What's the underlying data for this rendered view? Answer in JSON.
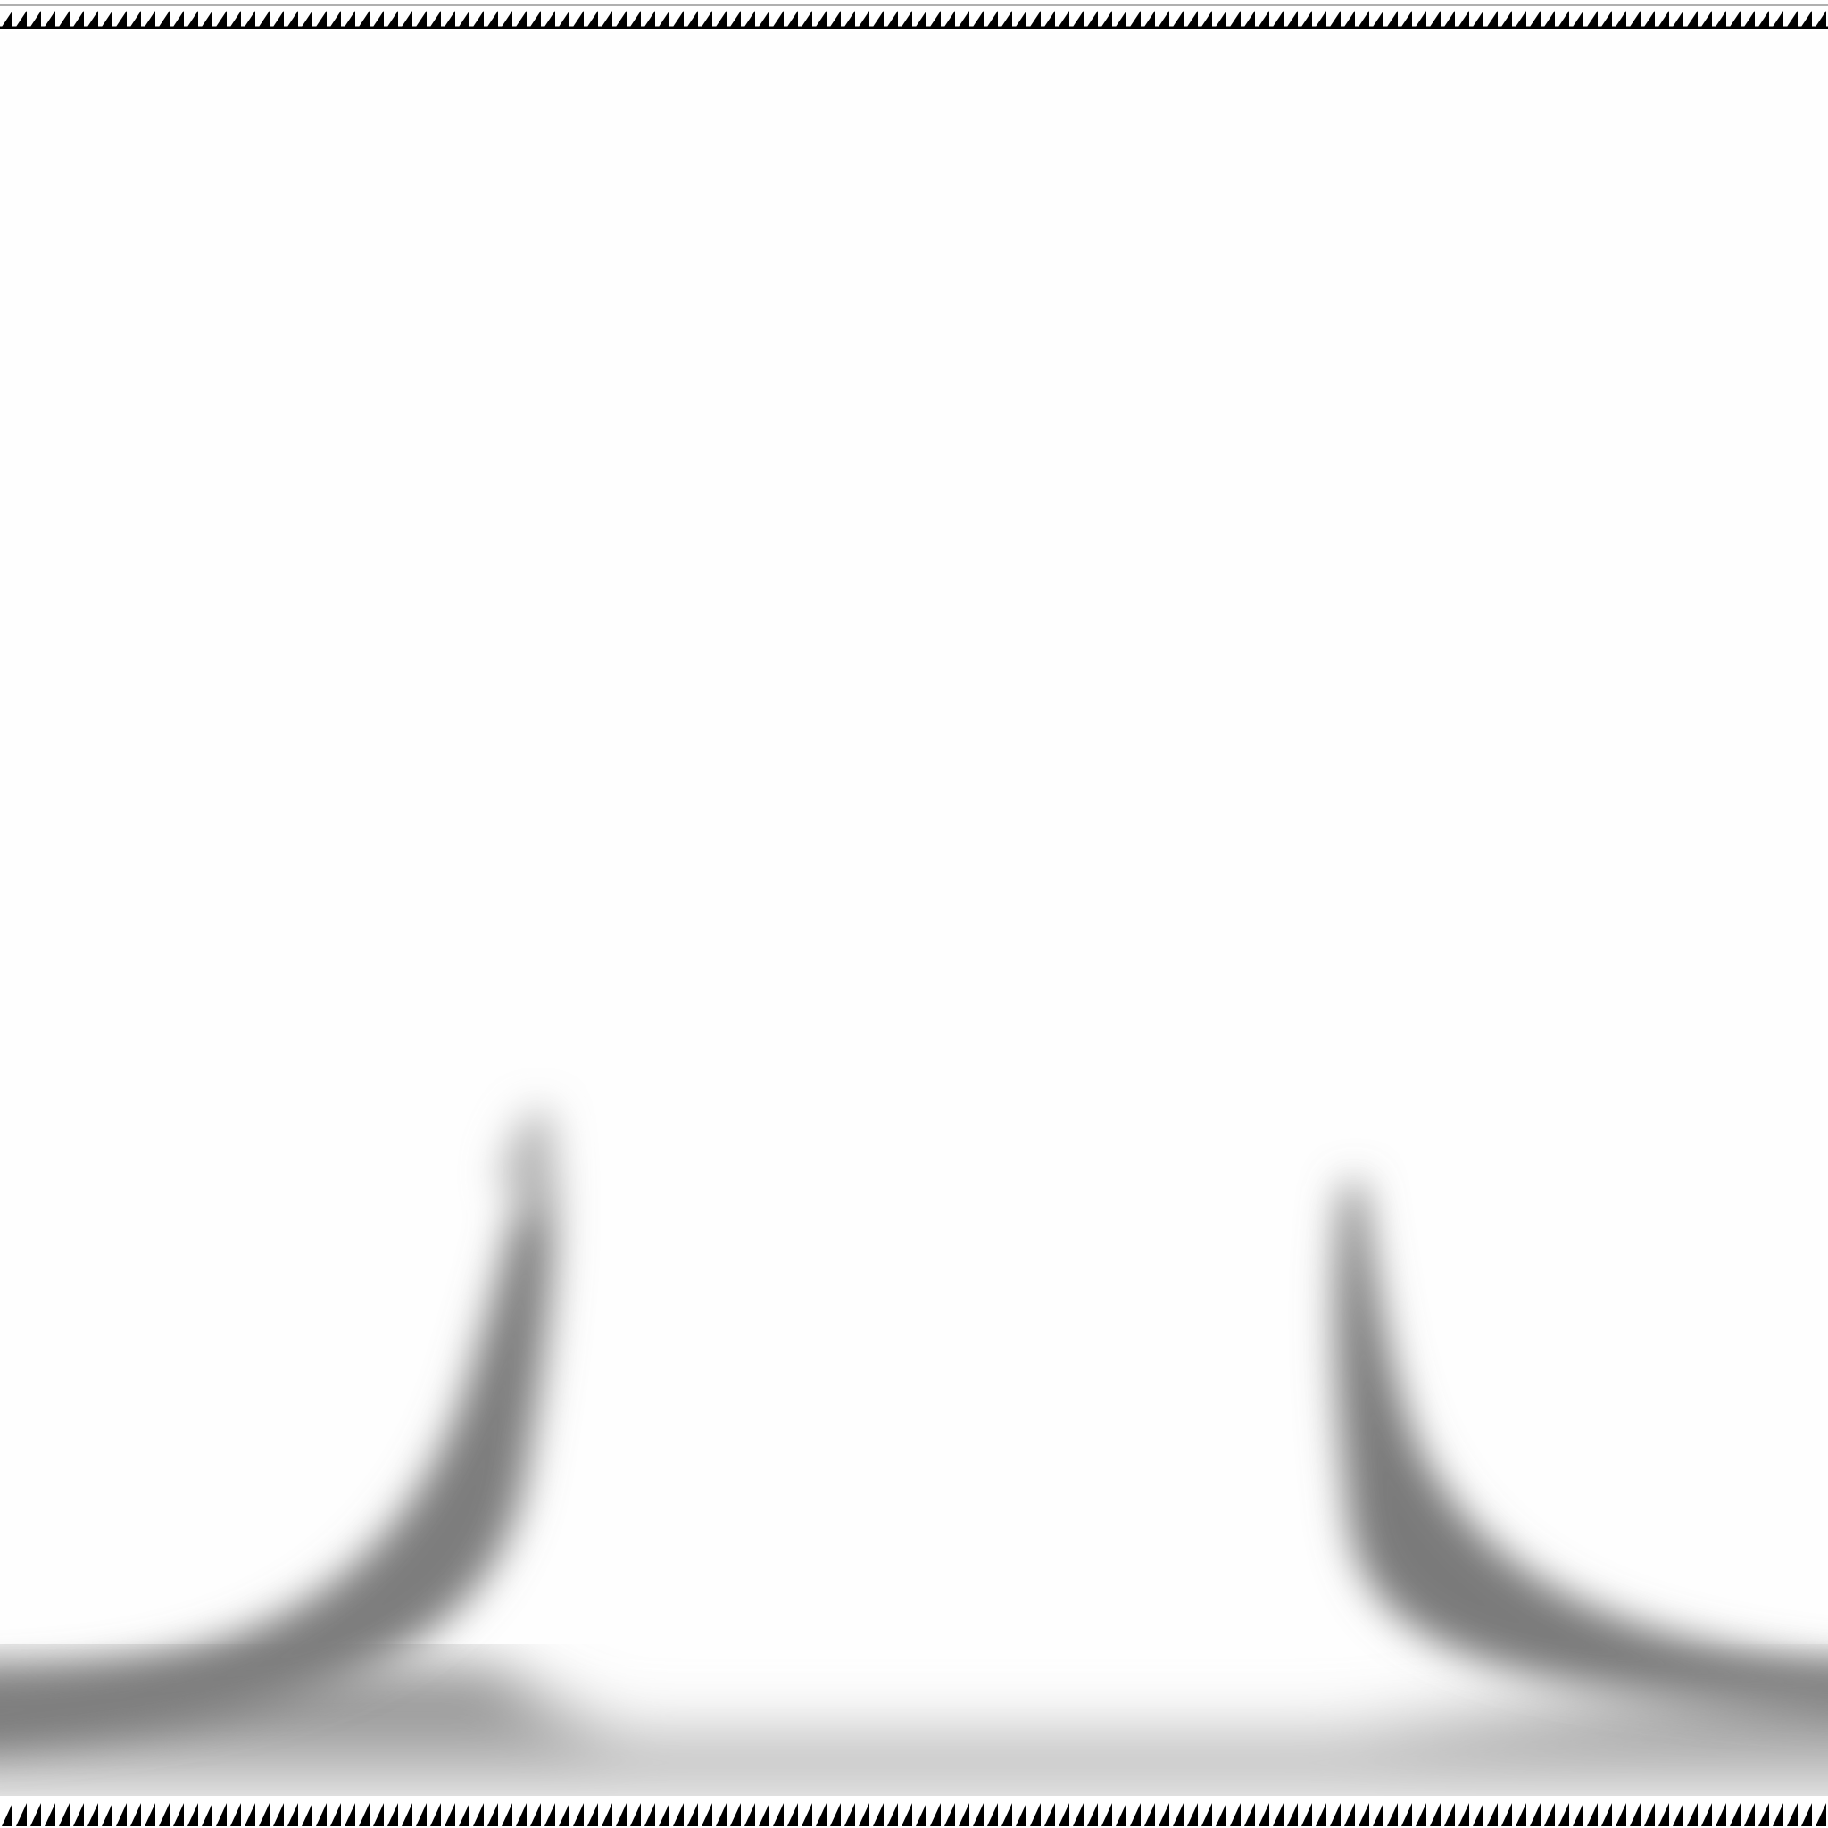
{
  "scene": {
    "background": "#fefefe",
    "shading_color": "#808080",
    "tooth_color": "#000000",
    "top_edge": {
      "icon": "sawtooth-triangle-strip"
    },
    "bottom_edge": {
      "icon": "sawtooth-triangle-strip"
    },
    "shapes": [
      {
        "name": "left-curved-plume",
        "icon": "blurred-gray-arc"
      },
      {
        "name": "right-curved-plume",
        "icon": "blurred-gray-arc"
      }
    ]
  }
}
